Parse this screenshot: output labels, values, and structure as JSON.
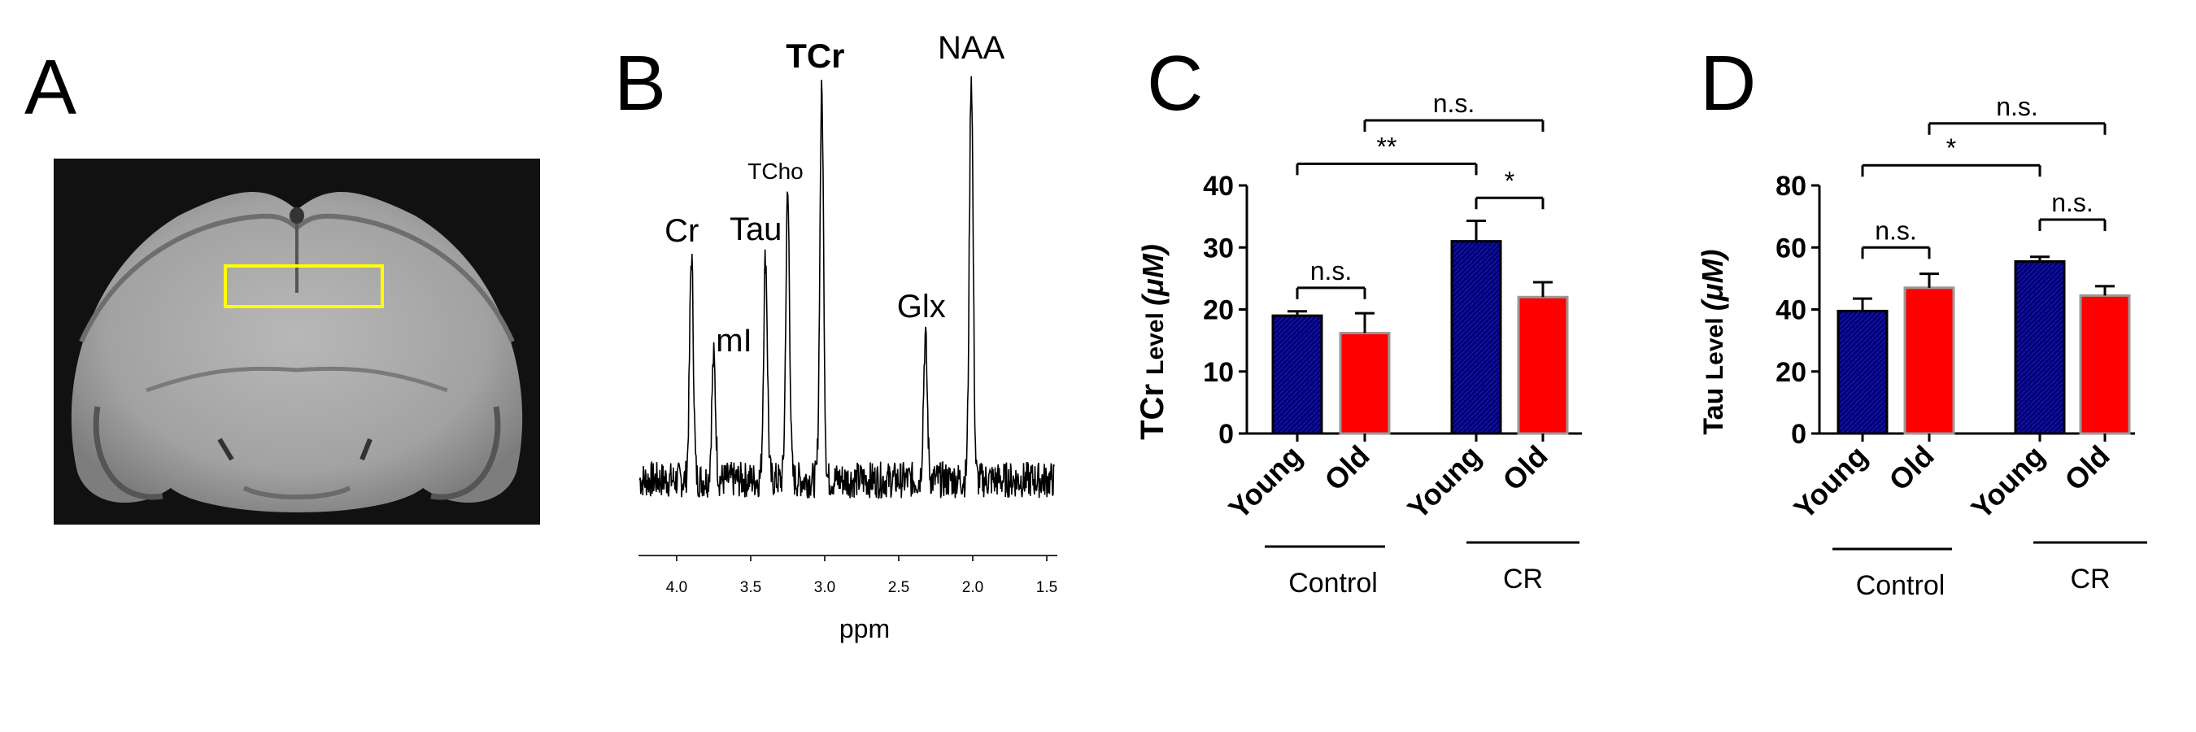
{
  "panels": {
    "A": {
      "label": "A"
    },
    "B": {
      "label": "B"
    },
    "C": {
      "label": "C"
    },
    "D": {
      "label": "D"
    }
  },
  "chart_data": [
    {
      "panel": "A",
      "type": "other",
      "description_visible": "brain MRI with yellow voxel box"
    },
    {
      "panel": "B",
      "type": "line",
      "title": "",
      "xlabel": "ppm",
      "xlim": [
        4.25,
        1.45
      ],
      "xticks": [
        "4.0",
        "3.5",
        "3.0",
        "2.5",
        "2.0",
        "1.5"
      ],
      "xtick_values": [
        4.0,
        3.5,
        3.0,
        2.5,
        2.0,
        1.5
      ],
      "peaks": [
        {
          "label": "Cr",
          "ppm": 3.9,
          "height": 0.55
        },
        {
          "label": "mI",
          "ppm": 3.75,
          "height": 0.3
        },
        {
          "label": "Tau",
          "ppm": 3.4,
          "height": 0.55
        },
        {
          "label": "TCho",
          "ppm": 3.25,
          "height": 0.7
        },
        {
          "label": "TCr",
          "ppm": 3.02,
          "height": 0.95
        },
        {
          "label": "Glx",
          "ppm": 2.32,
          "height": 0.35
        },
        {
          "label": "NAA",
          "ppm": 2.01,
          "height": 1.0
        }
      ]
    },
    {
      "panel": "C",
      "type": "bar",
      "ylabel_main": "TCr",
      "ylabel_mid": "Level",
      "ylabel_unit": "(μM)",
      "ylim": [
        0,
        40
      ],
      "yticks": [
        "0",
        "10",
        "20",
        "30",
        "40"
      ],
      "ytick_values": [
        0,
        10,
        20,
        30,
        40
      ],
      "categories": [
        "Young",
        "Old",
        "Young",
        "Old"
      ],
      "groups": [
        "Control",
        "CR"
      ],
      "values": [
        19,
        16.2,
        31,
        22
      ],
      "errors": [
        0.7,
        3.2,
        3.3,
        2.4
      ],
      "colors": [
        "#00007a",
        "#ff0000",
        "#00007a",
        "#ff0000"
      ],
      "significance": [
        {
          "from": 0,
          "to": 1,
          "label": "n.s.",
          "y": 23.5
        },
        {
          "from": 2,
          "to": 3,
          "label": "*",
          "y": 38
        },
        {
          "from": 0,
          "to": 2,
          "label": "**",
          "y": 43.5
        },
        {
          "from": 1,
          "to": 3,
          "label": "n.s.",
          "y": 50.5
        }
      ]
    },
    {
      "panel": "D",
      "type": "bar",
      "ylabel_main": "Tau",
      "ylabel_mid": "Level",
      "ylabel_unit": "(μM)",
      "ylim": [
        0,
        80
      ],
      "yticks": [
        "0",
        "20",
        "40",
        "60",
        "80"
      ],
      "ytick_values": [
        0,
        20,
        40,
        60,
        80
      ],
      "categories": [
        "Young",
        "Old",
        "Young",
        "Old"
      ],
      "groups": [
        "Control",
        "CR"
      ],
      "values": [
        39.5,
        47,
        55.5,
        44.5
      ],
      "errors": [
        4,
        4.5,
        1.5,
        3
      ],
      "colors": [
        "#00007a",
        "#ff0000",
        "#00007a",
        "#ff0000"
      ],
      "significance": [
        {
          "from": 0,
          "to": 1,
          "label": "n.s.",
          "y": 60
        },
        {
          "from": 2,
          "to": 3,
          "label": "n.s.",
          "y": 69
        },
        {
          "from": 0,
          "to": 2,
          "label": "*",
          "y": 86.5
        },
        {
          "from": 1,
          "to": 3,
          "label": "n.s.",
          "y": 100
        }
      ]
    }
  ]
}
